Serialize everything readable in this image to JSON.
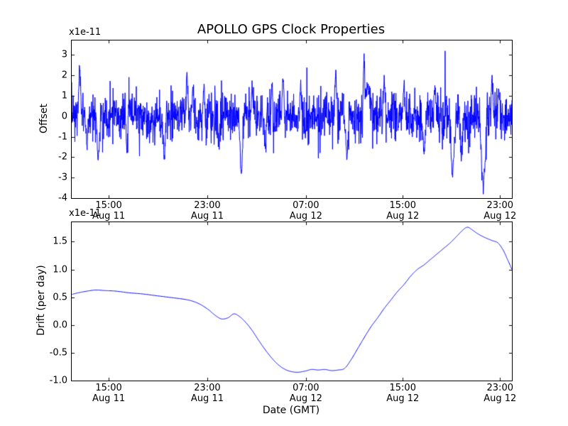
{
  "figure": {
    "background": "#ffffff",
    "line_color": "#0000ff",
    "axis_color": "#000000"
  },
  "chart_data": [
    {
      "type": "line",
      "title": "APOLLO GPS Clock Properties",
      "ylabel": "Offset",
      "scale_label": "x1e-11",
      "ylim": [
        -4,
        3.7
      ],
      "grid": false,
      "legend": "none",
      "y_ticks": [
        "3",
        "2",
        "1",
        "0",
        "-1",
        "-2",
        "-3",
        "-4"
      ],
      "x_ticks": [
        {
          "pos": 0.084,
          "time": "15:00",
          "date": "Aug 11"
        },
        {
          "pos": 0.308,
          "time": "23:00",
          "date": "Aug 11"
        },
        {
          "pos": 0.532,
          "time": "07:00",
          "date": "Aug 12"
        },
        {
          "pos": 0.752,
          "time": "15:00",
          "date": "Aug 12"
        },
        {
          "pos": 0.973,
          "time": "23:00",
          "date": "Aug 12"
        }
      ],
      "series": {
        "name": "clock-offset",
        "style": "noisy",
        "n": 1800,
        "seed": 7,
        "std": 0.55,
        "heavy_prob": 0.03,
        "heavy_mult": 2.0,
        "wander": 0.12,
        "spikes": [
          [
            0.018,
            2.4,
            0.004
          ],
          [
            0.035,
            -1.6,
            0.004
          ],
          [
            0.06,
            -2.2,
            0.005
          ],
          [
            0.125,
            -1.9,
            0.004
          ],
          [
            0.21,
            -2.1,
            0.005
          ],
          [
            0.262,
            2.2,
            0.005
          ],
          [
            0.275,
            1.6,
            0.004
          ],
          [
            0.3,
            1.5,
            0.004
          ],
          [
            0.335,
            -1.5,
            0.004
          ],
          [
            0.385,
            -3.1,
            0.006
          ],
          [
            0.41,
            1.5,
            0.004
          ],
          [
            0.44,
            -1.7,
            0.004
          ],
          [
            0.455,
            1.6,
            0.004
          ],
          [
            0.48,
            1.9,
            0.004
          ],
          [
            0.52,
            1.7,
            0.004
          ],
          [
            0.6,
            2.3,
            0.004
          ],
          [
            0.625,
            -2.3,
            0.005
          ],
          [
            0.664,
            3.7,
            0.003
          ],
          [
            0.672,
            1.6,
            0.012
          ],
          [
            0.71,
            1.9,
            0.004
          ],
          [
            0.755,
            1.7,
            0.004
          ],
          [
            0.8,
            -1.8,
            0.005
          ],
          [
            0.825,
            1.5,
            0.004
          ],
          [
            0.865,
            -3.0,
            0.007
          ],
          [
            0.885,
            -2.1,
            0.005
          ],
          [
            0.935,
            -3.7,
            0.009
          ],
          [
            0.955,
            1.9,
            0.004
          ],
          [
            0.97,
            1.4,
            0.004
          ]
        ]
      }
    },
    {
      "type": "line",
      "ylabel": "Drift (per day)",
      "xlabel": "Date (GMT)",
      "scale_label": "x1e-11",
      "ylim": [
        -1.0,
        1.85
      ],
      "grid": false,
      "legend": "none",
      "y_ticks": [
        "1.5",
        "1.0",
        "0.5",
        "0.0",
        "-0.5",
        "-1.0"
      ],
      "x_ticks": [
        {
          "pos": 0.084,
          "time": "15:00",
          "date": "Aug 11"
        },
        {
          "pos": 0.308,
          "time": "23:00",
          "date": "Aug 11"
        },
        {
          "pos": 0.532,
          "time": "07:00",
          "date": "Aug 12"
        },
        {
          "pos": 0.752,
          "time": "15:00",
          "date": "Aug 12"
        },
        {
          "pos": 0.973,
          "time": "23:00",
          "date": "Aug 12"
        }
      ],
      "series": {
        "name": "clock-drift",
        "style": "smooth",
        "points": [
          [
            0.0,
            0.55
          ],
          [
            0.015,
            0.58
          ],
          [
            0.035,
            0.61
          ],
          [
            0.055,
            0.63
          ],
          [
            0.075,
            0.62
          ],
          [
            0.1,
            0.61
          ],
          [
            0.13,
            0.58
          ],
          [
            0.16,
            0.56
          ],
          [
            0.19,
            0.53
          ],
          [
            0.22,
            0.5
          ],
          [
            0.25,
            0.47
          ],
          [
            0.27,
            0.44
          ],
          [
            0.29,
            0.38
          ],
          [
            0.31,
            0.28
          ],
          [
            0.325,
            0.18
          ],
          [
            0.34,
            0.11
          ],
          [
            0.355,
            0.13
          ],
          [
            0.368,
            0.2
          ],
          [
            0.38,
            0.16
          ],
          [
            0.395,
            0.05
          ],
          [
            0.41,
            -0.1
          ],
          [
            0.425,
            -0.28
          ],
          [
            0.44,
            -0.45
          ],
          [
            0.455,
            -0.6
          ],
          [
            0.47,
            -0.72
          ],
          [
            0.485,
            -0.8
          ],
          [
            0.5,
            -0.84
          ],
          [
            0.515,
            -0.85
          ],
          [
            0.53,
            -0.83
          ],
          [
            0.545,
            -0.8
          ],
          [
            0.56,
            -0.81
          ],
          [
            0.575,
            -0.8
          ],
          [
            0.59,
            -0.82
          ],
          [
            0.605,
            -0.81
          ],
          [
            0.62,
            -0.78
          ],
          [
            0.635,
            -0.62
          ],
          [
            0.65,
            -0.42
          ],
          [
            0.665,
            -0.22
          ],
          [
            0.68,
            -0.03
          ],
          [
            0.695,
            0.13
          ],
          [
            0.71,
            0.3
          ],
          [
            0.725,
            0.45
          ],
          [
            0.74,
            0.6
          ],
          [
            0.755,
            0.73
          ],
          [
            0.77,
            0.88
          ],
          [
            0.785,
            1.0
          ],
          [
            0.8,
            1.08
          ],
          [
            0.815,
            1.18
          ],
          [
            0.83,
            1.28
          ],
          [
            0.845,
            1.38
          ],
          [
            0.86,
            1.48
          ],
          [
            0.875,
            1.6
          ],
          [
            0.89,
            1.72
          ],
          [
            0.9,
            1.76
          ],
          [
            0.912,
            1.7
          ],
          [
            0.925,
            1.63
          ],
          [
            0.94,
            1.57
          ],
          [
            0.955,
            1.52
          ],
          [
            0.968,
            1.48
          ],
          [
            0.98,
            1.35
          ],
          [
            0.99,
            1.18
          ],
          [
            1.0,
            1.0
          ]
        ]
      }
    }
  ]
}
